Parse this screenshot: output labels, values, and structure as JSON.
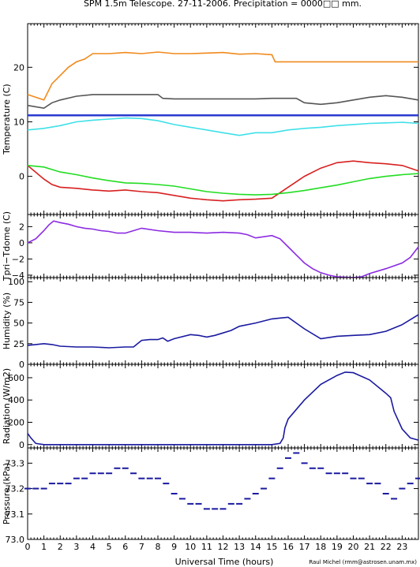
{
  "title": "SPM 1.5m Telescope. 27-11-2006. Precipitation = 0000□□ mm.",
  "credit": "Raul Michel (rmm@astrosen.unam.mx)",
  "xlabel": "Universal Time (hours)",
  "x_ticks": [
    "0",
    "1",
    "2",
    "3",
    "4",
    "5",
    "6",
    "7",
    "8",
    "9",
    "10",
    "11",
    "12",
    "13",
    "14",
    "15",
    "16",
    "17",
    "18",
    "19",
    "20",
    "21",
    "22",
    "23"
  ],
  "xlim": [
    0,
    24
  ],
  "panels": [
    {
      "ylabel": "Temperature (C)",
      "ylim": [
        -7,
        28
      ],
      "yticks": [
        0,
        10,
        20
      ],
      "ytick_labels": [
        "0",
        "10",
        "20"
      ]
    },
    {
      "ylabel": "Tpri−Tdome (C)",
      "ylim": [
        -4.3,
        3.5
      ],
      "yticks": [
        -4,
        -2,
        0,
        2
      ],
      "ytick_labels": [
        "−4",
        "−2",
        "0",
        "2"
      ]
    },
    {
      "ylabel": "Humidity (%)",
      "ylim": [
        0,
        105
      ],
      "yticks": [
        0,
        25,
        50,
        75,
        100
      ],
      "ytick_labels": [
        "0",
        "25",
        "50",
        "75",
        "100"
      ]
    },
    {
      "ylabel": "Radiation (W/m2)",
      "ylim": [
        -30,
        720
      ],
      "yticks": [
        0,
        200,
        400,
        600
      ],
      "ytick_labels": [
        "0",
        "200",
        "400",
        "600"
      ]
    },
    {
      "ylabel": "Pressure (kPa)",
      "ylim": [
        73.0,
        73.36
      ],
      "yticks": [
        73.0,
        73.1,
        73.2,
        73.3
      ],
      "ytick_labels": [
        "73.0",
        "73.1",
        "73.2",
        "73.3"
      ]
    }
  ],
  "chart_data": [
    {
      "type": "line",
      "title": "SPM 1.5m Telescope. 27-11-2006. Precipitation = 0000□□ mm.",
      "ylabel": "Temperature (C)",
      "xlim": [
        0,
        24
      ],
      "ylim": [
        -7,
        28
      ],
      "series": [
        {
          "color": "#f08a1c",
          "x": [
            0,
            1,
            1.5,
            2,
            2.5,
            3,
            3.5,
            4,
            5,
            6,
            7,
            8,
            9,
            10,
            11,
            12,
            13,
            14,
            15,
            15.2,
            15.5,
            16,
            18,
            20,
            22,
            24
          ],
          "y": [
            15,
            14,
            17,
            18.5,
            20,
            21,
            21.5,
            22.5,
            22.5,
            22.7,
            22.5,
            22.8,
            22.5,
            22.5,
            22.6,
            22.7,
            22.4,
            22.5,
            22.3,
            21,
            21,
            21,
            21,
            21,
            21,
            21
          ]
        },
        {
          "color": "#555555",
          "x": [
            0,
            1,
            1.5,
            2,
            3,
            4,
            5,
            6,
            7,
            8,
            8.3,
            9,
            10,
            11,
            12,
            13,
            14,
            15,
            16,
            16.5,
            17,
            18,
            19,
            20,
            21,
            22,
            23,
            24
          ],
          "y": [
            13,
            12.5,
            13.5,
            14,
            14.7,
            15,
            15,
            15,
            15,
            15,
            14.3,
            14.2,
            14.2,
            14.2,
            14.2,
            14.2,
            14.2,
            14.3,
            14.3,
            14.3,
            13.5,
            13.2,
            13.5,
            14,
            14.5,
            14.8,
            14.5,
            14
          ]
        },
        {
          "color": "#2a3bd0",
          "x": [
            0,
            24
          ],
          "y": [
            11.2,
            11.2
          ]
        },
        {
          "color": "#3fe0e8",
          "x": [
            0,
            1,
            2,
            3,
            4,
            5,
            6,
            7,
            8,
            9,
            10,
            11,
            12,
            13,
            14,
            15,
            16,
            17,
            18,
            19,
            20,
            21,
            22,
            23,
            24
          ],
          "y": [
            8.5,
            8.8,
            9.3,
            10,
            10.3,
            10.5,
            10.7,
            10.6,
            10.2,
            9.5,
            9,
            8.5,
            8,
            7.5,
            8,
            8,
            8.5,
            8.8,
            9,
            9.3,
            9.5,
            9.7,
            9.8,
            9.9,
            9.7
          ]
        },
        {
          "color": "#d82020",
          "x": [
            0,
            1,
            1.5,
            2,
            3,
            4,
            5,
            6,
            7,
            8,
            9,
            10,
            11,
            12,
            13,
            14,
            15,
            16,
            17,
            18,
            19,
            20,
            21,
            22,
            23,
            24
          ],
          "y": [
            2,
            -0.5,
            -1.5,
            -2,
            -2.2,
            -2.5,
            -2.7,
            -2.5,
            -2.8,
            -3,
            -3.5,
            -4,
            -4.3,
            -4.5,
            -4.3,
            -4.2,
            -4,
            -2,
            0,
            1.5,
            2.5,
            2.8,
            2.5,
            2.3,
            2,
            1
          ]
        },
        {
          "color": "#22dd22",
          "x": [
            0,
            1,
            2,
            3,
            4,
            5,
            6,
            7,
            8,
            9,
            10,
            11,
            12,
            13,
            14,
            15,
            16,
            17,
            18,
            19,
            20,
            21,
            22,
            23,
            24
          ],
          "y": [
            2,
            1.7,
            0.8,
            0.3,
            -0.3,
            -0.8,
            -1.2,
            -1.3,
            -1.5,
            -1.8,
            -2.3,
            -2.8,
            -3.1,
            -3.3,
            -3.4,
            -3.3,
            -3,
            -2.6,
            -2.1,
            -1.6,
            -1,
            -0.4,
            0,
            0.3,
            0.5
          ]
        }
      ]
    },
    {
      "type": "line",
      "ylabel": "Tpri−Tdome (C)",
      "xlim": [
        0,
        24
      ],
      "ylim": [
        -4.3,
        3.5
      ],
      "series": [
        {
          "color": "#8b2be2",
          "x": [
            0,
            0.5,
            1,
            1.3,
            1.6,
            2,
            2.5,
            3,
            3.5,
            4,
            4.5,
            5,
            5.5,
            6,
            7,
            8,
            9,
            10,
            11,
            12,
            13,
            13.5,
            14,
            15,
            15.5,
            16,
            16.5,
            17,
            17.5,
            18,
            18.5,
            19,
            20,
            20.5,
            21,
            22,
            23,
            23.5,
            24
          ],
          "y": [
            0,
            0.5,
            1.5,
            2.2,
            2.7,
            2.5,
            2.3,
            2,
            1.8,
            1.7,
            1.5,
            1.4,
            1.2,
            1.2,
            1.8,
            1.5,
            1.3,
            1.3,
            1.2,
            1.3,
            1.2,
            1,
            0.6,
            0.9,
            0.5,
            -0.5,
            -1.5,
            -2.5,
            -3.2,
            -3.7,
            -4,
            -4.2,
            -4.3,
            -4.2,
            -3.8,
            -3.2,
            -2.5,
            -1.8,
            -0.5
          ]
        }
      ]
    },
    {
      "type": "line",
      "ylabel": "Humidity (%)",
      "xlim": [
        0,
        24
      ],
      "ylim": [
        0,
        105
      ],
      "series": [
        {
          "color": "#1a1aa0",
          "x": [
            0,
            0.5,
            1,
            1.5,
            2,
            3,
            4,
            5,
            6,
            6.5,
            7,
            7.5,
            8,
            8.3,
            8.6,
            9,
            10,
            10.5,
            11,
            11.5,
            12,
            12.5,
            13,
            14,
            15,
            15.5,
            16,
            17,
            18,
            19,
            20,
            21,
            22,
            23,
            24
          ],
          "y": [
            23,
            24,
            25,
            24,
            22,
            21,
            21,
            20,
            21,
            21,
            29,
            30,
            30,
            32,
            28,
            31,
            36,
            35,
            33,
            35,
            38,
            41,
            46,
            50,
            55,
            56,
            57,
            43,
            31,
            34,
            35,
            36,
            40,
            48,
            60
          ]
        }
      ]
    },
    {
      "type": "line",
      "ylabel": "Radiation (W/m2)",
      "xlim": [
        0,
        24
      ],
      "ylim": [
        -30,
        720
      ],
      "series": [
        {
          "color": "#1a1aa0",
          "x": [
            0,
            0.2,
            0.5,
            1,
            2,
            5,
            10,
            15,
            15.5,
            15.7,
            15.8,
            16,
            17,
            18,
            19,
            19.5,
            20,
            21,
            22,
            22.3,
            22.5,
            23,
            23.5,
            24
          ],
          "y": [
            100,
            60,
            10,
            0,
            0,
            0,
            0,
            0,
            10,
            60,
            150,
            230,
            400,
            540,
            620,
            650,
            645,
            580,
            460,
            420,
            300,
            140,
            60,
            40
          ]
        }
      ]
    },
    {
      "type": "scatter",
      "ylabel": "Pressure (kPa)",
      "xlim": [
        0,
        24
      ],
      "ylim": [
        73.0,
        73.36
      ],
      "series": [
        {
          "color": "#1a1aa0",
          "x": [
            0,
            0.5,
            1,
            1.5,
            2,
            2.5,
            3,
            3.5,
            4,
            4.5,
            5,
            5.5,
            6,
            6.5,
            7,
            7.5,
            8,
            8.5,
            9,
            9.5,
            10,
            10.5,
            11,
            11.5,
            12,
            12.5,
            13,
            13.5,
            14,
            14.5,
            15,
            15.5,
            16,
            16.5,
            17,
            17.5,
            18,
            18.5,
            19,
            19.5,
            20,
            20.5,
            21,
            21.5,
            22,
            22.5,
            23,
            23.5,
            24
          ],
          "y": [
            73.2,
            73.2,
            73.2,
            73.22,
            73.22,
            73.22,
            73.24,
            73.24,
            73.26,
            73.26,
            73.26,
            73.28,
            73.28,
            73.26,
            73.24,
            73.24,
            73.24,
            73.22,
            73.18,
            73.16,
            73.14,
            73.14,
            73.12,
            73.12,
            73.12,
            73.14,
            73.14,
            73.16,
            73.18,
            73.2,
            73.24,
            73.28,
            73.32,
            73.34,
            73.3,
            73.28,
            73.28,
            73.26,
            73.26,
            73.26,
            73.24,
            73.24,
            73.22,
            73.22,
            73.18,
            73.16,
            73.2,
            73.22,
            73.24
          ]
        }
      ]
    }
  ]
}
